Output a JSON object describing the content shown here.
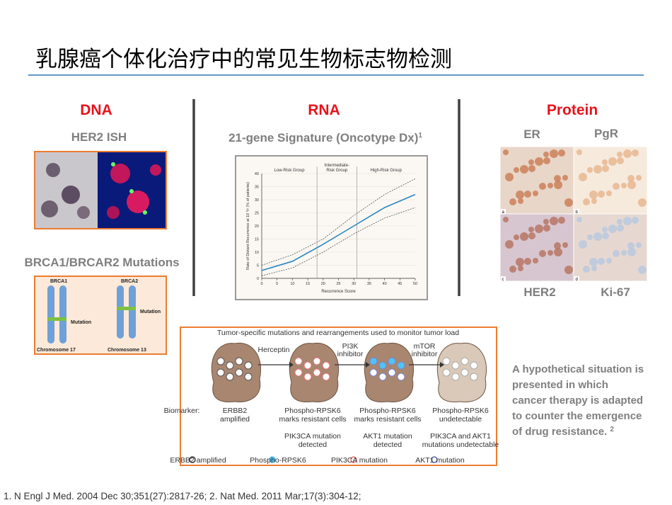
{
  "header": {
    "title": "乳腺癌个体化治疗中的常见生物标志物检测"
  },
  "dna": {
    "heading": "DNA",
    "her2_label": "HER2 ISH",
    "brca_label": "BRCA1/BRCAR2 Mutations",
    "brca_figure": {
      "genes": [
        "BRCA1",
        "BRCA2"
      ],
      "mutations": [
        "Mutation",
        "Mutation"
      ],
      "chromosomes": [
        "Chromosome 17",
        "Chromosome 13"
      ]
    }
  },
  "rna": {
    "heading": "RNA",
    "subtitle": "21-gene Signature (Oncotype Dx)",
    "subtitle_note": "1",
    "figure": {
      "groups": [
        [
          "Low-Risk Group"
        ],
        [
          "Intermediate-",
          "Risk Group"
        ],
        [
          "High-Risk Group"
        ]
      ],
      "dividers": [
        18,
        31
      ],
      "x_label": "Recurrence Score",
      "y_label": "Rate of Distant Recurrence at 10 Yr (% of patients)",
      "xlim": [
        0,
        50
      ],
      "ylim": [
        0,
        40
      ],
      "xticks": [
        0,
        5,
        10,
        15,
        20,
        25,
        30,
        35,
        40,
        45,
        50
      ],
      "yticks": [
        0,
        5,
        10,
        15,
        20,
        25,
        30,
        35,
        40
      ],
      "x": [
        0,
        10,
        20,
        30,
        40,
        50
      ],
      "values": [
        3,
        6.5,
        13,
        20,
        27,
        32
      ],
      "upper": [
        5,
        9,
        15,
        24,
        32,
        38
      ],
      "lower": [
        1,
        4,
        10,
        17,
        23,
        27
      ]
    }
  },
  "protein": {
    "heading": "Protein",
    "panels": [
      {
        "label": "ER",
        "letter": "a"
      },
      {
        "label": "PgR",
        "letter": "b"
      },
      {
        "label": "HER2",
        "letter": "c"
      },
      {
        "label": "Ki-67",
        "letter": "d"
      }
    ]
  },
  "tumor_figure": {
    "title": "Tumor-specific mutations and rearrangements used to monitor tumor load",
    "drugs": [
      [
        "Herceptin"
      ],
      [
        "PI3K",
        "inhibitor"
      ],
      [
        "mTOR",
        "inhibitor"
      ]
    ],
    "biomarker_label": "Biomarker:",
    "biomarkers": [
      [
        "ERBB2",
        "amplified"
      ],
      [
        "Phospho-RPSK6",
        "marks resistant cells"
      ],
      [
        "Phospho-RPSK6",
        "marks resistant cells"
      ],
      [
        "Phospho-RPSK6",
        "undetectable"
      ]
    ],
    "mutations": [
      [
        "PIK3CA mutation",
        "detected"
      ],
      [
        "AKT1 mutation",
        "detected"
      ],
      [
        "PIK3CA and AKT1",
        "mutations undetectable"
      ]
    ],
    "legend": [
      "ERBB2 amplified",
      "Phospho-RPSK6",
      "PIK3CA mutation",
      "AKT1 mutation"
    ]
  },
  "note": {
    "lines": [
      "A hypothetical situation is",
      "presented in which",
      "cancer therapy is adapted",
      "to counter the emergence",
      "of drug resistance. "
    ],
    "ref": "2"
  },
  "footnote": "1. N Engl J Med. 2004 Dec 30;351(27):2817-26; 2. Nat Med. 2011 Mar;17(3):304-12;"
}
